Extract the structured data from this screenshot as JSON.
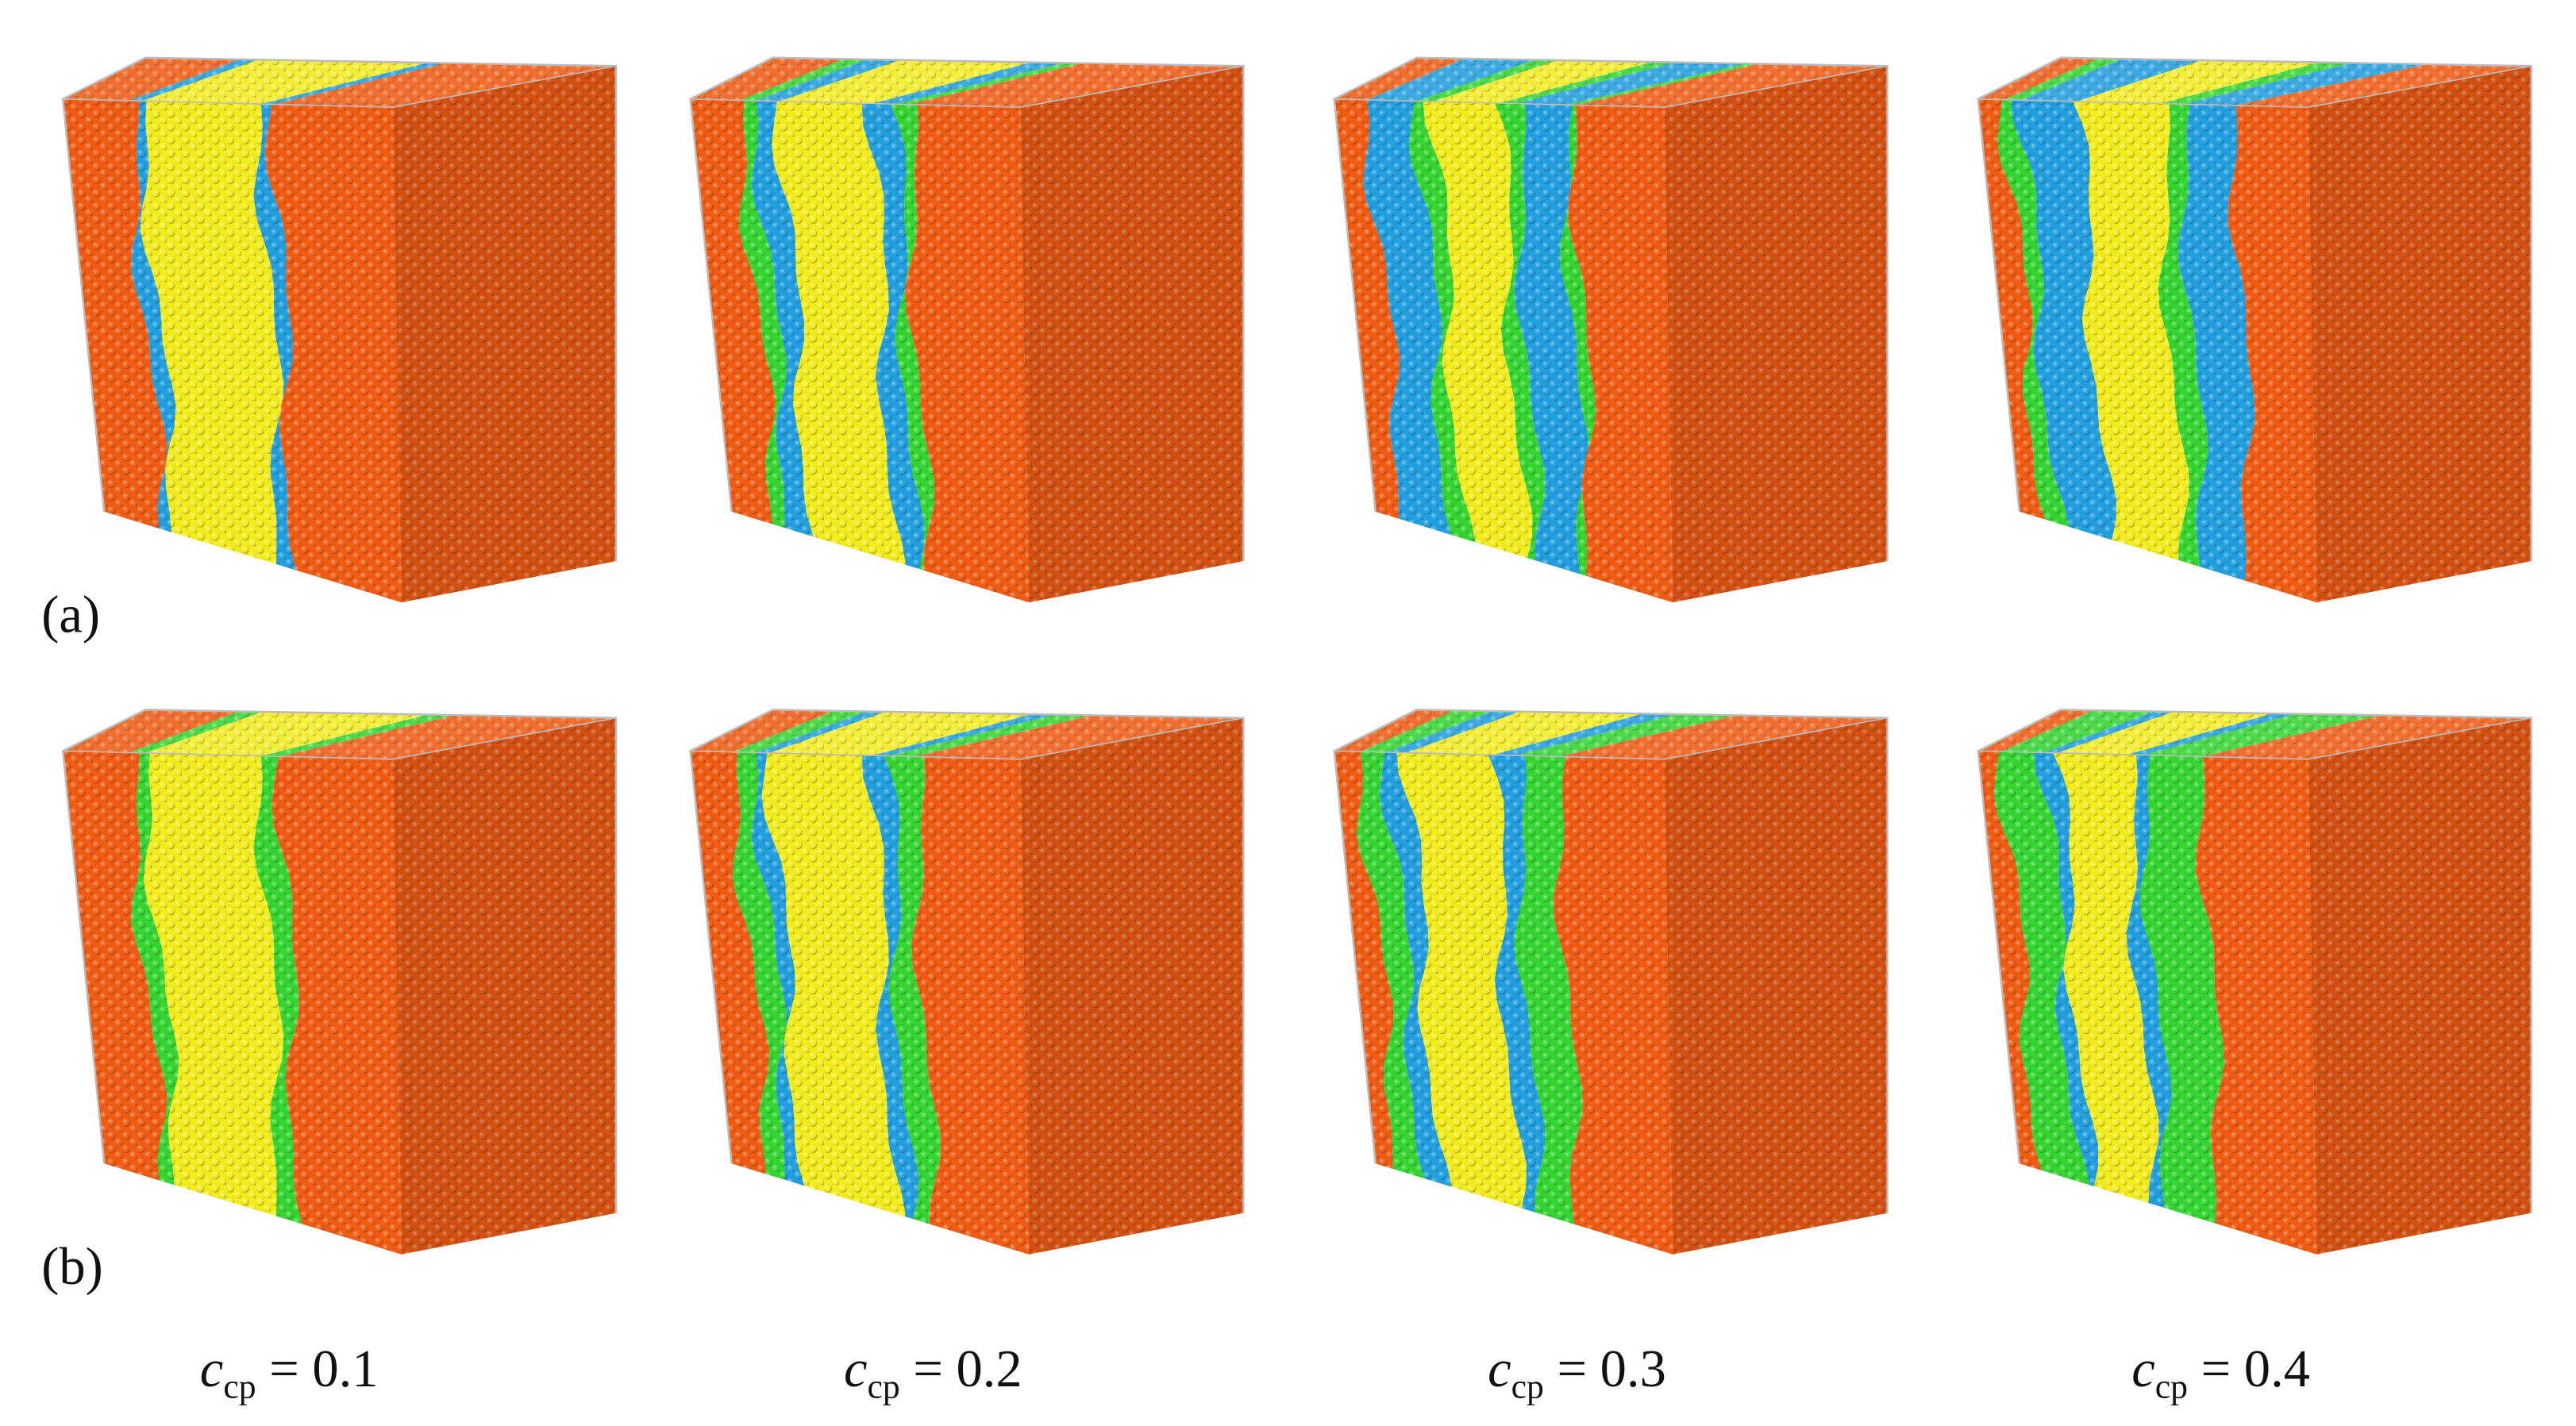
{
  "panels": [
    {
      "label": "(a)"
    },
    {
      "label": "(b)"
    }
  ],
  "columns": [
    {
      "symbol": "c",
      "subscript": "cp",
      "relation": "=",
      "value": 0.1
    },
    {
      "symbol": "c",
      "subscript": "cp",
      "relation": "=",
      "value": 0.2
    },
    {
      "symbol": "c",
      "subscript": "cp",
      "relation": "=",
      "value": 0.3
    },
    {
      "symbol": "c",
      "subscript": "cp",
      "relation": "=",
      "value": 0.4
    }
  ]
}
